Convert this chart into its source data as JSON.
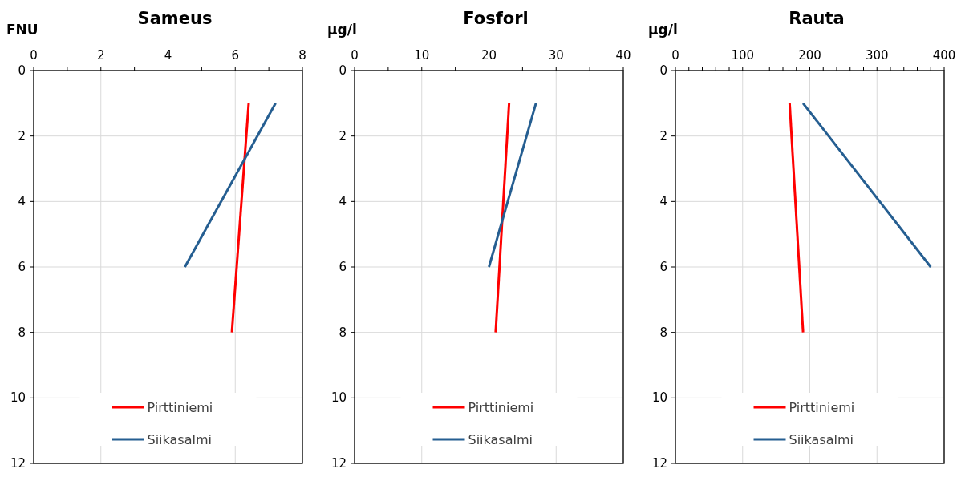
{
  "chart_data": [
    {
      "type": "line",
      "title": "Sameus",
      "ylabel": "FNU",
      "xlim": [
        0,
        8
      ],
      "xticks": [
        0,
        {
          "value": 1,
          "label": null
        },
        2,
        {
          "value": 3,
          "label": null
        },
        4,
        {
          "value": 5,
          "label": null
        },
        6,
        {
          "value": 7,
          "label": null
        },
        8
      ],
      "ylim": [
        12,
        0
      ],
      "yticks": [
        0,
        2,
        4,
        6,
        8,
        10,
        12
      ],
      "grid": true,
      "legend": "bottom",
      "series": [
        {
          "name": "Pirttiniemi",
          "color": "#ff0000",
          "x": [
            6.4,
            5.9
          ],
          "values": [
            1,
            8
          ]
        },
        {
          "name": "Siikasalmi",
          "color": "#255e91",
          "x": [
            7.2,
            4.5
          ],
          "values": [
            1,
            6
          ]
        }
      ]
    },
    {
      "type": "line",
      "title": "Fosfori",
      "ylabel": "µg/l",
      "xlim": [
        0,
        40
      ],
      "xticks": [
        0,
        {
          "value": 5,
          "label": null
        },
        10,
        {
          "value": 15,
          "label": null
        },
        20,
        {
          "value": 25,
          "label": null
        },
        30,
        {
          "value": 35,
          "label": null
        },
        40
      ],
      "ylim": [
        12,
        0
      ],
      "yticks": [
        0,
        2,
        4,
        6,
        8,
        10,
        12
      ],
      "grid": true,
      "legend": "bottom",
      "series": [
        {
          "name": "Pirttiniemi",
          "color": "#ff0000",
          "x": [
            23,
            21
          ],
          "values": [
            1,
            8
          ]
        },
        {
          "name": "Siikasalmi",
          "color": "#255e91",
          "x": [
            27,
            20
          ],
          "values": [
            1,
            6
          ]
        }
      ]
    },
    {
      "type": "line",
      "title": "Rauta",
      "ylabel": "µg/l",
      "xlim": [
        0,
        400
      ],
      "xticks": [
        0,
        {
          "value": 20,
          "label": null
        },
        {
          "value": 40,
          "label": null
        },
        {
          "value": 60,
          "label": null
        },
        {
          "value": 80,
          "label": null
        },
        100,
        {
          "value": 120,
          "label": null
        },
        {
          "value": 140,
          "label": null
        },
        {
          "value": 160,
          "label": null
        },
        {
          "value": 180,
          "label": null
        },
        200,
        {
          "value": 220,
          "label": null
        },
        {
          "value": 240,
          "label": null
        },
        {
          "value": 260,
          "label": null
        },
        {
          "value": 280,
          "label": null
        },
        300,
        {
          "value": 320,
          "label": null
        },
        {
          "value": 340,
          "label": null
        },
        {
          "value": 360,
          "label": null
        },
        {
          "value": 380,
          "label": null
        },
        400
      ],
      "ylim": [
        12,
        0
      ],
      "yticks": [
        0,
        2,
        4,
        6,
        8,
        10,
        12
      ],
      "grid": true,
      "legend": "bottom",
      "series": [
        {
          "name": "Pirttiniemi",
          "color": "#ff0000",
          "x": [
            170,
            190
          ],
          "values": [
            1,
            8
          ]
        },
        {
          "name": "Siikasalmi",
          "color": "#255e91",
          "x": [
            190,
            380
          ],
          "values": [
            1,
            6
          ]
        }
      ]
    }
  ]
}
